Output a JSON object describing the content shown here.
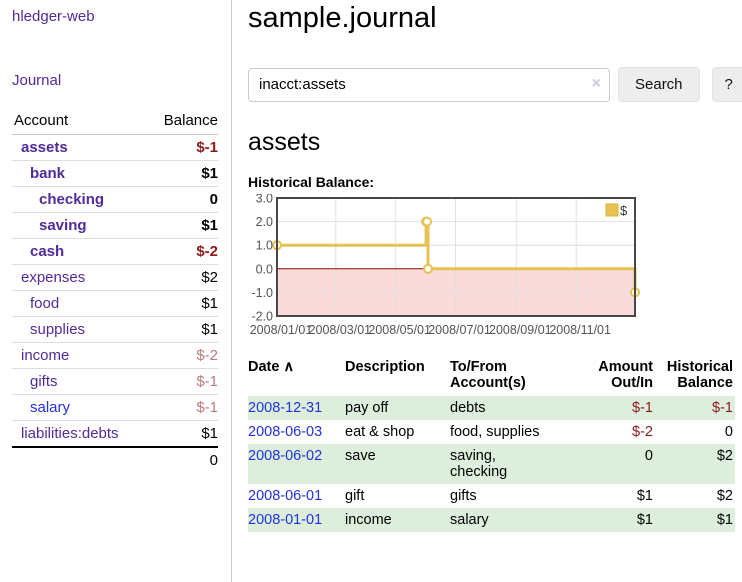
{
  "colors": {
    "purple_link": "#512b9a",
    "blue_link": "#2233dd",
    "negative_strong": "#8b1a1a",
    "negative_faded": "#b97c7c",
    "row_shade_green": "#ddeedd",
    "chart_line_gold": "#e6c153",
    "chart_negative_fill": "#fbdada",
    "chart_zero_line": "#8b0000"
  },
  "sidebar": {
    "app_title": "hledger-web",
    "journal_link": "Journal",
    "accounts_table": {
      "account_header": "Account",
      "balance_header": "Balance",
      "rows": [
        {
          "label": "assets",
          "indent": 1,
          "bold": true,
          "balance": "$-1",
          "balance_class": "neg",
          "link_color": "purple"
        },
        {
          "label": "bank",
          "indent": 2,
          "bold": true,
          "balance": "$1",
          "balance_class": "",
          "link_color": "purple"
        },
        {
          "label": "checking",
          "indent": 3,
          "bold": true,
          "balance": "0",
          "balance_class": "",
          "link_color": "purple"
        },
        {
          "label": "saving",
          "indent": 3,
          "bold": true,
          "balance": "$1",
          "balance_class": "",
          "link_color": "purple"
        },
        {
          "label": "cash",
          "indent": 2,
          "bold": true,
          "balance": "$-2",
          "balance_class": "neg",
          "link_color": "purple"
        },
        {
          "label": "expenses",
          "indent": 1,
          "bold": false,
          "balance": "$2",
          "balance_class": "",
          "link_color": "purple"
        },
        {
          "label": "food",
          "indent": 2,
          "bold": false,
          "balance": "$1",
          "balance_class": "",
          "link_color": "purple"
        },
        {
          "label": "supplies",
          "indent": 2,
          "bold": false,
          "balance": "$1",
          "balance_class": "",
          "link_color": "purple"
        },
        {
          "label": "income",
          "indent": 1,
          "bold": false,
          "balance": "$-2",
          "balance_class": "faded",
          "link_color": "purple"
        },
        {
          "label": "gifts",
          "indent": 2,
          "bold": false,
          "balance": "$-1",
          "balance_class": "faded",
          "link_color": "purple"
        },
        {
          "label": "salary",
          "indent": 2,
          "bold": false,
          "balance": "$-1",
          "balance_class": "faded",
          "link_color": "blue"
        },
        {
          "label": "liabilities:debts",
          "indent": 1,
          "bold": false,
          "balance": "$1",
          "balance_class": "",
          "link_color": "purple",
          "section_end": true
        }
      ],
      "total": "0"
    }
  },
  "main": {
    "title": "sample.journal",
    "search": {
      "value": "inacct:assets",
      "clear_icon": "×",
      "search_button": "Search",
      "help_button": "?"
    },
    "account_heading": "assets",
    "chart_label": "Historical Balance:"
  },
  "chart_data": {
    "type": "line",
    "title": "Historical Balance",
    "step": true,
    "x_range": [
      "2008-01-01",
      "2008-12-31"
    ],
    "ylim": [
      -2,
      3
    ],
    "y_ticks": [
      3.0,
      2.0,
      1.0,
      0.0,
      -1.0,
      -2.0
    ],
    "x_ticks": [
      "2008/01/01",
      "2008/03/01",
      "2008/05/01",
      "2008/07/01",
      "2008/09/01",
      "2008/11/01"
    ],
    "grid": true,
    "legend": {
      "label": "$",
      "position": "top-right"
    },
    "series": [
      {
        "name": "$",
        "color": "#e6c153",
        "points": [
          [
            "2008-01-01",
            1
          ],
          [
            "2008-06-01",
            2
          ],
          [
            "2008-06-02",
            2
          ],
          [
            "2008-06-03",
            0
          ],
          [
            "2008-12-31",
            -1
          ]
        ]
      }
    ],
    "negative_region_fill": "#fbdada",
    "zero_line_color": "#8b0000"
  },
  "register_table": {
    "headers": {
      "date": "Date",
      "sort_arrow": "∧",
      "description": "Description",
      "accounts": "To/From\nAccount(s)",
      "amount": "Amount\nOut/In",
      "balance": "Historical\nBalance"
    },
    "rows": [
      {
        "date": "2008-12-31",
        "description": "pay off",
        "accounts": "debts",
        "amount": "$-1",
        "amount_class": "neg",
        "balance": "$-1",
        "balance_class": "neg",
        "shaded": true
      },
      {
        "date": "2008-06-03",
        "description": "eat & shop",
        "accounts": "food, supplies",
        "amount": "$-2",
        "amount_class": "neg",
        "balance": "0",
        "balance_class": "",
        "shaded": false
      },
      {
        "date": "2008-06-02",
        "description": "save",
        "accounts": "saving,\nchecking",
        "amount": "0",
        "amount_class": "",
        "balance": "$2",
        "balance_class": "",
        "shaded": true
      },
      {
        "date": "2008-06-01",
        "description": "gift",
        "accounts": "gifts",
        "amount": "$1",
        "amount_class": "",
        "balance": "$2",
        "balance_class": "",
        "shaded": false
      },
      {
        "date": "2008-01-01",
        "description": "income",
        "accounts": "salary",
        "amount": "$1",
        "amount_class": "",
        "balance": "$1",
        "balance_class": "",
        "shaded": true
      }
    ]
  }
}
